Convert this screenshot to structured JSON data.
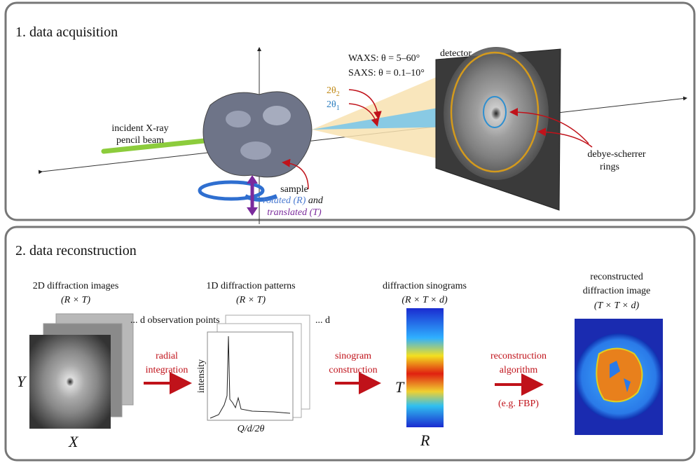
{
  "acquisition": {
    "title": "1. data acquisition",
    "waxs": "WAXS: θ = 5–60°",
    "saxs": "SAXS: θ = 0.1–10°",
    "angle2": {
      "base": "2θ",
      "sub": "2"
    },
    "angle1": {
      "base": "2θ",
      "sub": "1"
    },
    "detector": "detector",
    "beam": [
      "incident X-ray",
      "pencil beam"
    ],
    "sample": "sample",
    "rotated": "rotated (R)",
    "and": "and",
    "translated": "translated (T)",
    "rings": [
      "debye-scherrer",
      "rings"
    ]
  },
  "reconstruction": {
    "title": "2. data reconstruction",
    "images": {
      "label": "2D diffraction  images",
      "dims": "(R × T)",
      "note": "... d observation points",
      "y_axis": "Y",
      "x_axis": "X"
    },
    "step1": [
      "radial",
      "integration"
    ],
    "patterns": {
      "label": "1D diffraction  patterns",
      "dims": "(R × T)",
      "note": "... d",
      "y_axis": "intensity",
      "x_axis": "Q/d/2θ"
    },
    "step2": [
      "sinogram",
      "construction"
    ],
    "sinograms": {
      "label": "diffraction  sinograms",
      "dims": "(R × T × d)",
      "y_axis": "T",
      "x_axis": "R"
    },
    "step3": [
      "reconstruction",
      "algorithm",
      "(e.g. FBP)"
    ],
    "result": {
      "label": [
        "reconstructed",
        "diffraction image"
      ],
      "dims": "(T × T × d)"
    }
  }
}
